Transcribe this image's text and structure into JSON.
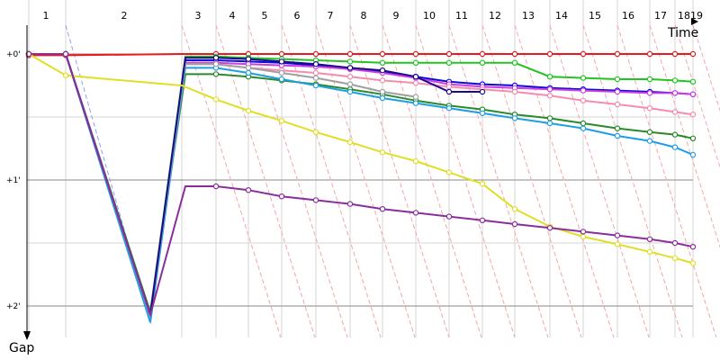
{
  "chart_data": {
    "type": "line",
    "x_label": "Time",
    "y_label": "Gap",
    "x_ticks": [
      "1",
      "2",
      "3",
      "4",
      "5",
      "6",
      "7",
      "8",
      "9",
      "10",
      "11",
      "12",
      "13",
      "14",
      "15",
      "16",
      "17",
      "18",
      "19"
    ],
    "y_ticks": [
      "+0'",
      "+1'",
      "+2'"
    ],
    "y_range_minutes": [
      0,
      2.3
    ],
    "grid": true,
    "series": [
      {
        "color": "#e8191f",
        "values": [
          0.01,
          0.01,
          0.0,
          0.0,
          0.0,
          0.0,
          0.0,
          0.0,
          0.0,
          0.0,
          0.0,
          0.0,
          0.0,
          0.0,
          0.0,
          0.0,
          0.0,
          0.0,
          0.0
        ]
      },
      {
        "color": "#22c322",
        "values": [
          0.0,
          0.0,
          2.05,
          0.02,
          0.03,
          0.04,
          0.05,
          0.06,
          0.07,
          0.07,
          0.07,
          0.07,
          0.07,
          0.18,
          0.19,
          0.2,
          0.2,
          0.21,
          0.22
        ]
      },
      {
        "color": "#0a0adc",
        "values": [
          0.0,
          0.0,
          2.07,
          0.05,
          0.06,
          0.07,
          0.09,
          0.11,
          0.14,
          0.18,
          0.22,
          0.24,
          0.25,
          0.27,
          0.28,
          0.29,
          0.3,
          0.31,
          0.32
        ]
      },
      {
        "color": "#cc3ee0",
        "values": [
          0.0,
          0.0,
          2.06,
          0.07,
          0.08,
          0.09,
          0.1,
          0.12,
          0.15,
          0.19,
          0.24,
          0.26,
          0.27,
          0.28,
          0.29,
          0.3,
          0.31,
          0.31,
          0.32
        ]
      },
      {
        "color": "#f48cb0",
        "values": [
          0.0,
          0.0,
          2.06,
          0.08,
          0.11,
          0.13,
          0.15,
          0.18,
          0.21,
          0.23,
          0.26,
          0.28,
          0.3,
          0.33,
          0.37,
          0.4,
          0.43,
          0.46,
          0.48
        ]
      },
      {
        "color": "#2a8a2a",
        "values": [
          0.0,
          0.0,
          2.05,
          0.16,
          0.18,
          0.21,
          0.24,
          0.28,
          0.32,
          0.37,
          0.41,
          0.44,
          0.48,
          0.51,
          0.55,
          0.59,
          0.62,
          0.64,
          0.67
        ]
      },
      {
        "color": "#1e9ee6",
        "values": [
          0.0,
          0.0,
          2.13,
          0.11,
          0.15,
          0.2,
          0.25,
          0.3,
          0.35,
          0.39,
          0.43,
          0.47,
          0.51,
          0.55,
          0.59,
          0.65,
          0.69,
          0.74,
          0.8
        ]
      },
      {
        "color": "#a0a0a0",
        "values": [
          0.0,
          0.0,
          2.08,
          0.08,
          0.11,
          0.15,
          0.19,
          0.24,
          0.3,
          0.34,
          null,
          null,
          null,
          null,
          null,
          null,
          null,
          null,
          null
        ]
      },
      {
        "color": "#1a0a8c",
        "values": [
          0.0,
          0.0,
          2.07,
          0.03,
          0.04,
          0.06,
          0.08,
          0.11,
          0.13,
          0.18,
          0.3,
          0.3,
          null,
          null,
          null,
          null,
          null,
          null,
          null
        ]
      },
      {
        "color": "#e0df27",
        "values": [
          0.0,
          0.17,
          0.25,
          0.36,
          0.45,
          0.53,
          0.62,
          0.7,
          0.78,
          0.85,
          0.94,
          1.03,
          1.23,
          1.37,
          1.45,
          1.51,
          1.57,
          1.62,
          1.66
        ]
      },
      {
        "color": "#8b2e9c",
        "values": [
          0.0,
          0.0,
          2.07,
          1.05,
          1.08,
          1.13,
          1.16,
          1.19,
          1.23,
          1.26,
          1.29,
          1.32,
          1.35,
          1.38,
          1.41,
          1.44,
          1.47,
          1.5,
          1.53
        ]
      }
    ]
  }
}
